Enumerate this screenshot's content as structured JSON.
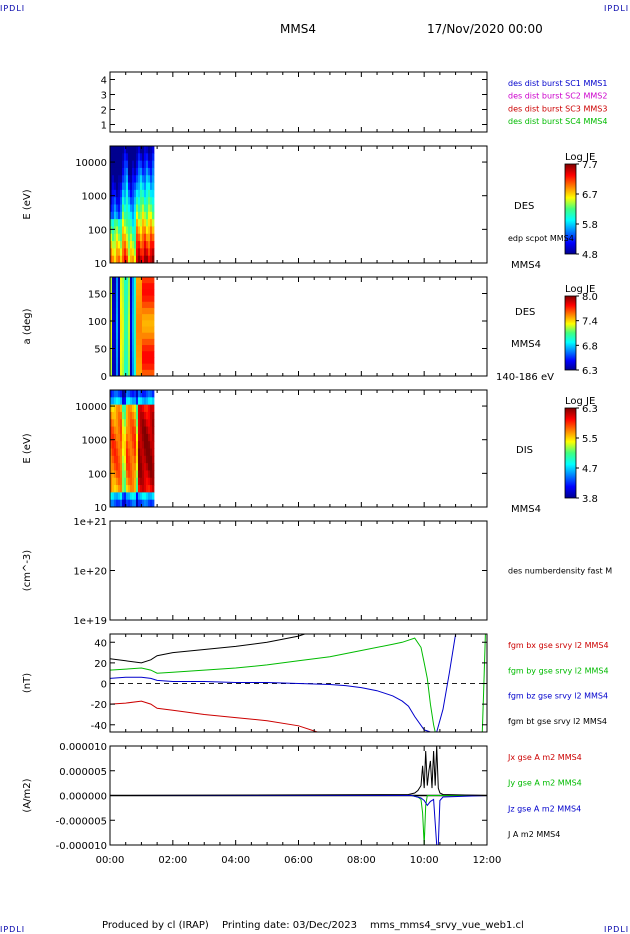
{
  "header": {
    "corner_label": "IPDLI",
    "spacecraft": "MMS4",
    "date": "17/Nov/2020 00:00"
  },
  "footer": {
    "produced_by": "Produced by cl (IRAP)",
    "printing_date": "Printing date: 03/Dec/2023",
    "script_name": "mms_mms4_srvy_vue_web1.cl"
  },
  "time_axis": {
    "ticks": [
      "00:00",
      "02:00",
      "04:00",
      "06:00",
      "08:00",
      "10:00",
      "12:00"
    ],
    "range_hours": [
      0,
      12
    ]
  },
  "colors": {
    "blue": "#0000cc",
    "magenta": "#cc00cc",
    "red": "#cc0000",
    "green": "#00bb00",
    "black": "#000000"
  },
  "chart_data": [
    {
      "type": "line",
      "id": "burst",
      "ylim": [
        0.5,
        4.5
      ],
      "yticks": [
        "1",
        "2",
        "3",
        "4"
      ],
      "ytick_values": [
        1,
        2,
        3,
        4
      ],
      "legend": [
        {
          "name": "des dist burst SC1 MMS1",
          "color": "#0000cc"
        },
        {
          "name": "des dist burst SC2 MMS2",
          "color": "#cc00cc"
        },
        {
          "name": "des dist burst SC3 MMS3",
          "color": "#cc0000"
        },
        {
          "name": "des dist burst SC4 MMS4",
          "color": "#00bb00"
        }
      ],
      "series": []
    },
    {
      "type": "heatmap",
      "id": "des_energy",
      "ylabel": "E (eV)",
      "yscale": "log",
      "ylim": [
        10,
        30000
      ],
      "yticks": [
        "10",
        "100",
        "1000",
        "10000"
      ],
      "ytick_values": [
        10,
        100,
        1000,
        10000
      ],
      "data_time_range_hours": [
        0,
        1.4
      ],
      "labels": [
        "DES",
        "edp scpot MMS4",
        "MMS4"
      ],
      "colorbar": {
        "title": "Log JE",
        "ticks": [
          "7.7",
          "6.7",
          "5.8",
          "4.8"
        ],
        "range": [
          4.8,
          7.7
        ]
      }
    },
    {
      "type": "heatmap",
      "id": "des_pitch",
      "ylabel": "a (deg)",
      "ylim": [
        0,
        180
      ],
      "yticks": [
        "0",
        "50",
        "100",
        "150"
      ],
      "ytick_values": [
        0,
        50,
        100,
        150
      ],
      "data_time_range_hours": [
        0,
        1.4
      ],
      "labels": [
        "DES",
        "MMS4",
        "140-186 eV"
      ],
      "colorbar": {
        "title": "Log JE",
        "ticks": [
          "8.0",
          "7.4",
          "6.8",
          "6.3"
        ],
        "range": [
          6.3,
          8.0
        ]
      }
    },
    {
      "type": "heatmap",
      "id": "dis_energy",
      "ylabel": "E (eV)",
      "yscale": "log",
      "ylim": [
        10,
        30000
      ],
      "yticks": [
        "10",
        "100",
        "1000",
        "10000"
      ],
      "ytick_values": [
        10,
        100,
        1000,
        10000
      ],
      "data_time_range_hours": [
        0,
        1.4
      ],
      "labels": [
        "DIS",
        "MMS4"
      ],
      "colorbar": {
        "title": "Log JE",
        "ticks": [
          "6.3",
          "5.5",
          "4.7",
          "3.8"
        ],
        "range": [
          3.8,
          6.3
        ]
      }
    },
    {
      "type": "line",
      "id": "density",
      "ylabel": "(cm^-3)",
      "yscale": "log",
      "ylim": [
        1e+19,
        1e+21
      ],
      "yticks": [
        "1e+19",
        "1e+20",
        "1e+21"
      ],
      "ytick_values": [
        1e+19,
        1e+20,
        1e+21
      ],
      "legend": [
        {
          "name": "des numberdensity fast M",
          "color": "#000000"
        }
      ],
      "series": []
    },
    {
      "type": "line",
      "id": "fgm",
      "ylabel": "(nT)",
      "ylim": [
        -47,
        48
      ],
      "yticks": [
        "-40",
        "-20",
        "0",
        "20",
        "40"
      ],
      "ytick_values": [
        -40,
        -20,
        0,
        20,
        40
      ],
      "legend": [
        {
          "name": "fgm bx gse srvy l2 MMS4",
          "color": "#cc0000"
        },
        {
          "name": "fgm by gse srvy l2 MMS4",
          "color": "#00bb00"
        },
        {
          "name": "fgm bz gse srvy l2 MMS4",
          "color": "#0000cc"
        },
        {
          "name": "fgm bt gse srvy l2 MMS4",
          "color": "#000000"
        }
      ],
      "series": [
        {
          "name": "fgm bx gse srvy l2 MMS4",
          "color": "#cc0000",
          "x": [
            0,
            0.5,
            1.0,
            1.3,
            1.5,
            2,
            3,
            4,
            5,
            6,
            6.6
          ],
          "y": [
            -20,
            -19,
            -17,
            -20,
            -24,
            -26,
            -30,
            -33,
            -36,
            -41,
            -48
          ]
        },
        {
          "name": "fgm by gse srvy l2 MMS4",
          "color": "#00bb00",
          "x": [
            0,
            0.5,
            1.0,
            1.3,
            1.5,
            2,
            3,
            4,
            5,
            6,
            7,
            8,
            9,
            9.3,
            9.5,
            9.7,
            9.9,
            10.0,
            10.1,
            10.2,
            10.3,
            10.35,
            11.85,
            11.9,
            11.95
          ],
          "y": [
            13,
            14,
            15,
            13,
            10,
            11,
            13,
            15,
            18,
            22,
            26,
            32,
            38,
            40,
            42,
            44,
            35,
            20,
            5,
            -20,
            -40,
            -47,
            -47,
            0,
            48
          ]
        },
        {
          "name": "fgm bz gse srvy l2 MMS4",
          "color": "#0000cc",
          "x": [
            0,
            0.5,
            1.0,
            1.3,
            1.5,
            2,
            3,
            4,
            5,
            6,
            7,
            7.5,
            8,
            8.5,
            9,
            9.3,
            9.5,
            9.7,
            10.0,
            10.2,
            10.4,
            10.6,
            10.8,
            11.0
          ],
          "y": [
            5,
            6,
            6,
            5,
            3,
            2,
            2,
            1,
            1,
            0,
            -1,
            -2,
            -4,
            -7,
            -12,
            -17,
            -22,
            -32,
            -45,
            -47,
            -47,
            -25,
            10,
            48
          ]
        },
        {
          "name": "fgm bt gse srvy l2 MMS4",
          "color": "#000000",
          "x": [
            0,
            0.5,
            1.0,
            1.3,
            1.5,
            2,
            3,
            4,
            5,
            6,
            6.2
          ],
          "y": [
            24,
            22,
            20,
            23,
            27,
            30,
            33,
            36,
            40,
            46,
            48
          ]
        }
      ]
    },
    {
      "type": "line",
      "id": "current",
      "ylabel": "(A/m2)",
      "ylim": [
        -1e-05,
        1e-05
      ],
      "yticks": [
        "-0.000010",
        "-0.000005",
        "0.000000",
        "0.000005",
        "0.000010"
      ],
      "ytick_values": [
        -1e-05,
        -5e-06,
        0,
        5e-06,
        1e-05
      ],
      "legend": [
        {
          "name": "Jx gse A m2 MMS4",
          "color": "#cc0000"
        },
        {
          "name": "Jy gse A m2 MMS4",
          "color": "#00bb00"
        },
        {
          "name": "Jz gse A m2 MMS4",
          "color": "#0000cc"
        },
        {
          "name": "J A m2 MMS4",
          "color": "#000000"
        }
      ],
      "series": [
        {
          "name": "Jy gse A m2 MMS4",
          "color": "#00bb00",
          "x": [
            0,
            9.6,
            9.8,
            9.9,
            9.95,
            10.0,
            10.05,
            10.1,
            12
          ],
          "y": [
            0,
            0,
            -3e-07,
            -8e-07,
            -3.5e-06,
            -1e-05,
            -2e-06,
            0,
            0
          ]
        },
        {
          "name": "Jz gse A m2 MMS4",
          "color": "#0000cc",
          "x": [
            0,
            9.6,
            9.9,
            10.0,
            10.1,
            10.2,
            10.3,
            10.4,
            10.45,
            10.5,
            10.6,
            12
          ],
          "y": [
            0,
            0,
            -5e-07,
            -1e-06,
            -2e-06,
            -1.2e-06,
            -8e-07,
            -1e-05,
            -1e-05,
            -1e-06,
            -3e-07,
            0
          ]
        },
        {
          "name": "J A m2 MMS4",
          "color": "#000000",
          "x": [
            0,
            9.5,
            9.7,
            9.8,
            9.9,
            9.95,
            10.0,
            10.05,
            10.1,
            10.15,
            10.2,
            10.25,
            10.3,
            10.35,
            10.4,
            10.45,
            10.5,
            10.6,
            12
          ],
          "y": [
            0,
            2e-07,
            5e-07,
            1e-06,
            2e-06,
            6e-06,
            1.5e-06,
            9e-06,
            2e-06,
            5e-06,
            7e-06,
            1.5e-06,
            9e-06,
            2e-06,
            1e-05,
            1.5e-06,
            5e-07,
            2e-07,
            0
          ]
        }
      ]
    }
  ]
}
